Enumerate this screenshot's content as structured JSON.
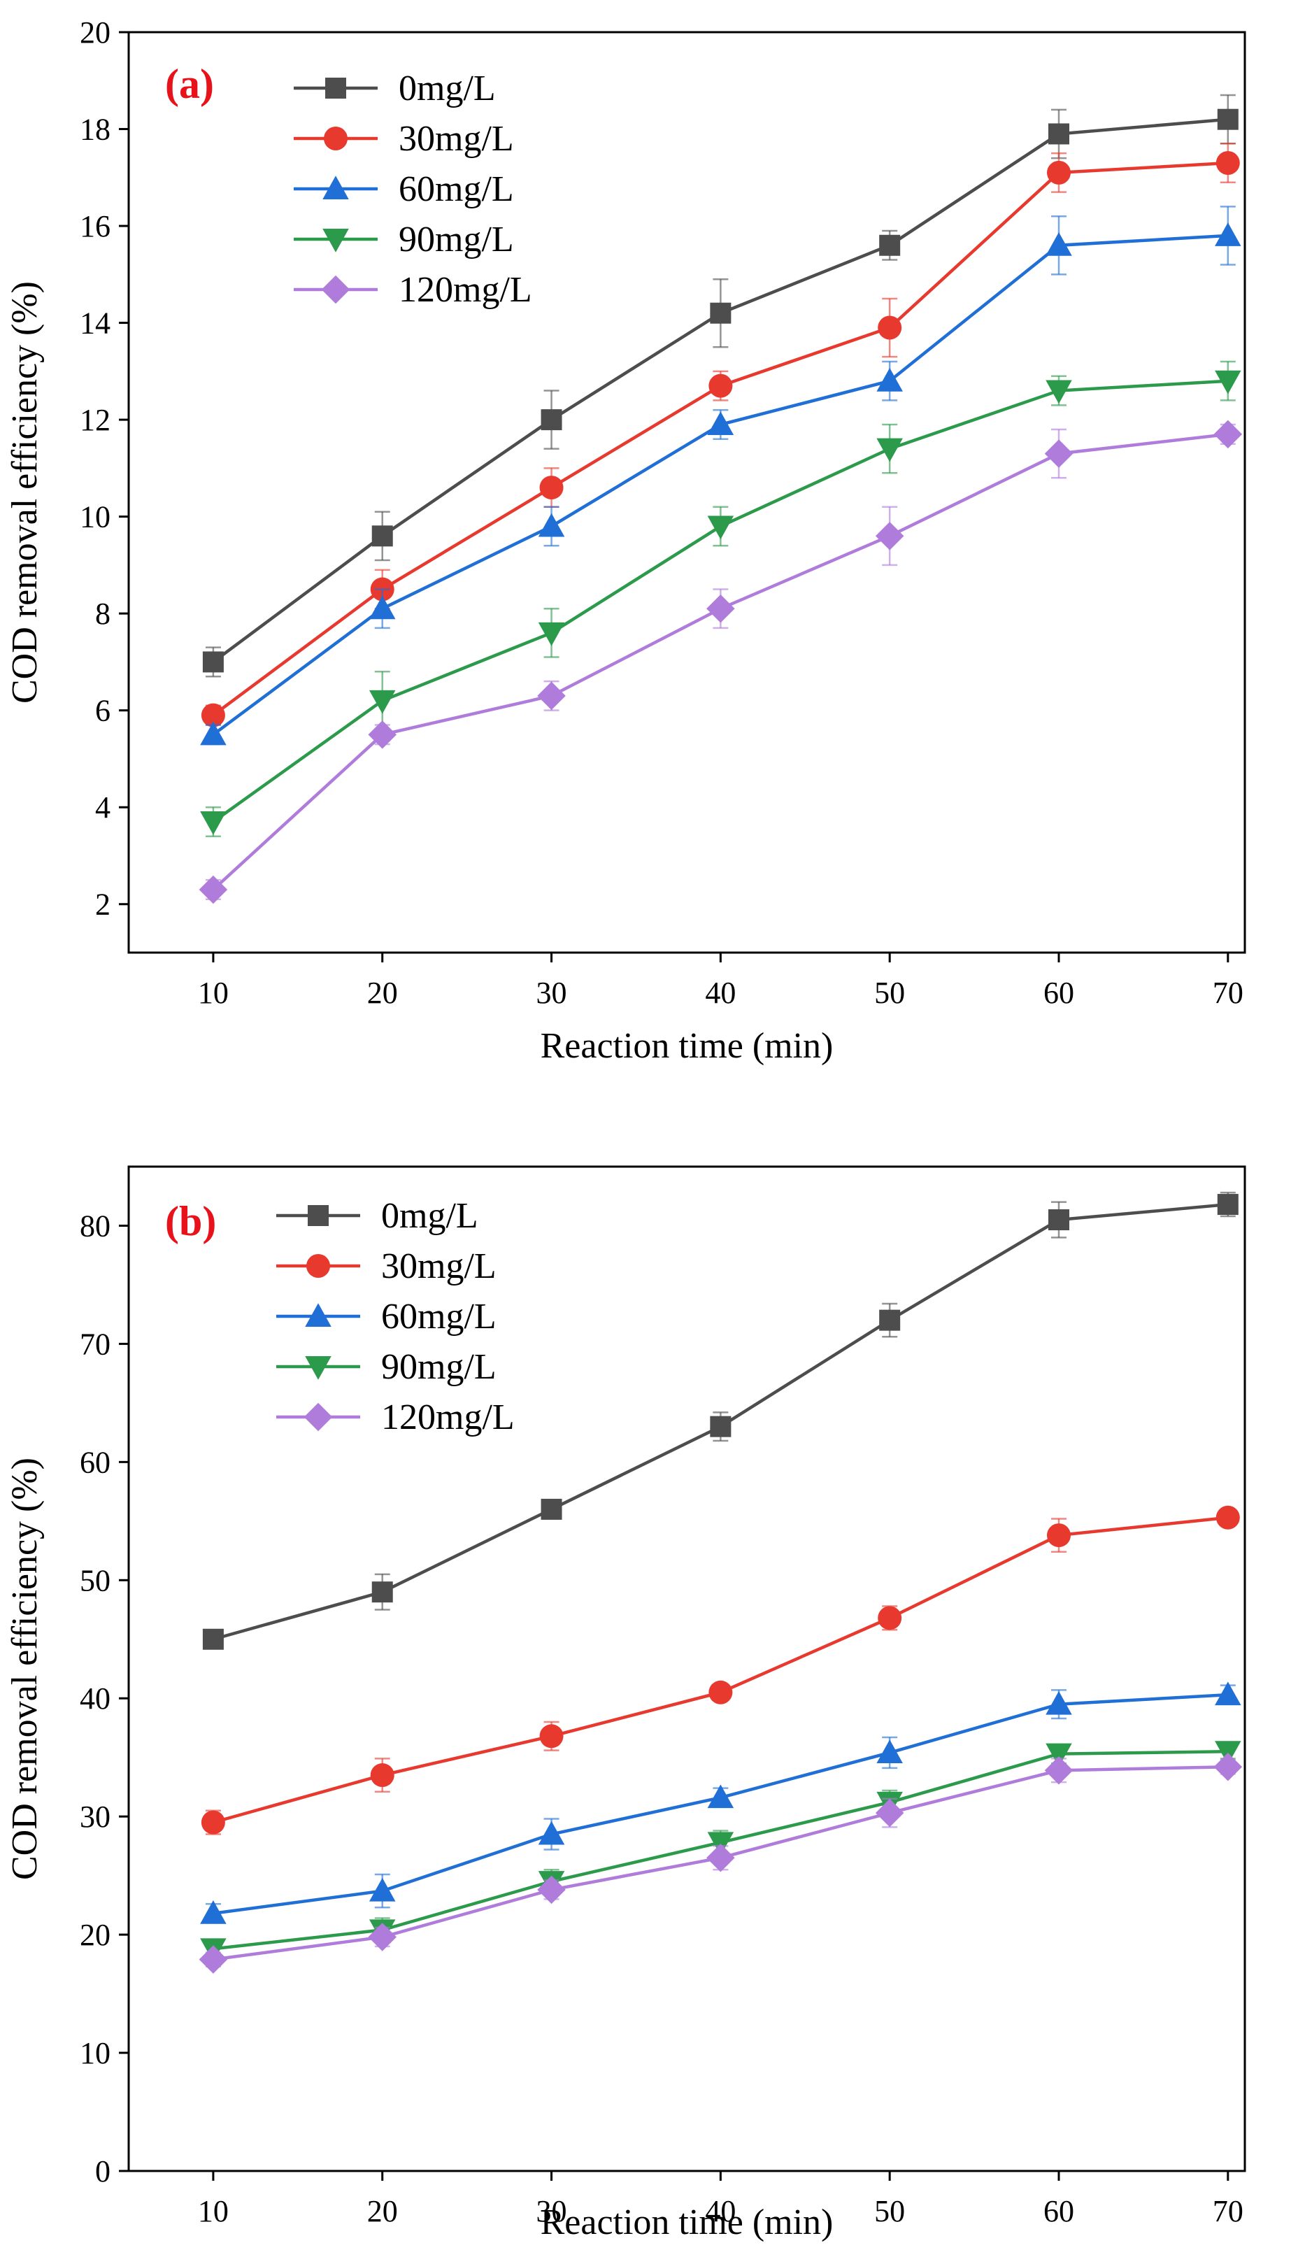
{
  "chart_data": [
    {
      "panel": "(a)",
      "type": "line",
      "xlabel": "Reaction time (min)",
      "ylabel": "COD removal efficiency (%)",
      "xlim": [
        5,
        71
      ],
      "ylim": [
        1,
        20
      ],
      "xticks": [
        10,
        20,
        30,
        40,
        50,
        60,
        70
      ],
      "yticks": [
        2,
        4,
        6,
        8,
        10,
        12,
        14,
        16,
        18,
        20
      ],
      "legend": "top-left",
      "x": [
        10,
        20,
        30,
        40,
        50,
        60,
        70
      ],
      "series": [
        {
          "name": "0mg/L",
          "color": "#4d4d4d",
          "marker": "square",
          "values": [
            7.0,
            9.6,
            12.0,
            14.2,
            15.6,
            17.9,
            18.2
          ],
          "errors": [
            0.3,
            0.5,
            0.6,
            0.7,
            0.3,
            0.5,
            0.5
          ]
        },
        {
          "name": "30mg/L",
          "color": "#e8392f",
          "marker": "circle",
          "values": [
            5.9,
            8.5,
            10.6,
            12.7,
            13.9,
            17.1,
            17.3
          ],
          "errors": [
            0.2,
            0.4,
            0.4,
            0.3,
            0.6,
            0.4,
            0.4
          ]
        },
        {
          "name": "60mg/L",
          "color": "#1f6fd6",
          "marker": "triangle-up",
          "values": [
            5.5,
            8.1,
            9.8,
            11.9,
            12.8,
            15.6,
            15.8
          ],
          "errors": [
            0.2,
            0.4,
            0.4,
            0.3,
            0.4,
            0.6,
            0.6
          ]
        },
        {
          "name": "90mg/L",
          "color": "#2c9a4b",
          "marker": "triangle-down",
          "values": [
            3.7,
            6.2,
            7.6,
            9.8,
            11.4,
            12.6,
            12.8
          ],
          "errors": [
            0.3,
            0.6,
            0.5,
            0.4,
            0.5,
            0.3,
            0.4
          ]
        },
        {
          "name": "120mg/L",
          "color": "#b07cdb",
          "marker": "diamond",
          "values": [
            2.3,
            5.5,
            6.3,
            8.1,
            9.6,
            11.3,
            11.7
          ],
          "errors": [
            0.2,
            0.2,
            0.3,
            0.4,
            0.6,
            0.5,
            0.2
          ]
        }
      ]
    },
    {
      "panel": "(b)",
      "type": "line",
      "xlabel": "Reaction time (min)",
      "ylabel": "COD removal efficiency (%)",
      "xlim": [
        5,
        71
      ],
      "ylim": [
        0,
        85
      ],
      "xticks": [
        10,
        20,
        30,
        40,
        50,
        60,
        70
      ],
      "yticks": [
        0,
        10,
        20,
        30,
        40,
        50,
        60,
        70,
        80
      ],
      "legend": "top-left",
      "x": [
        10,
        20,
        30,
        40,
        50,
        60,
        70
      ],
      "series": [
        {
          "name": "0mg/L",
          "color": "#4d4d4d",
          "marker": "square",
          "values": [
            45.0,
            49.0,
            56.0,
            63.0,
            72.0,
            80.5,
            81.8
          ],
          "errors": [
            0.8,
            1.5,
            0.7,
            1.2,
            1.4,
            1.5,
            1.0
          ]
        },
        {
          "name": "30mg/L",
          "color": "#e8392f",
          "marker": "circle",
          "values": [
            29.5,
            33.5,
            36.8,
            40.5,
            46.8,
            53.8,
            55.3
          ],
          "errors": [
            1.0,
            1.4,
            1.2,
            0.6,
            1.0,
            1.4,
            0.6
          ]
        },
        {
          "name": "60mg/L",
          "color": "#1f6fd6",
          "marker": "triangle-up",
          "values": [
            21.8,
            23.7,
            28.5,
            31.6,
            35.4,
            39.5,
            40.3
          ],
          "errors": [
            0.8,
            1.4,
            1.3,
            0.8,
            1.3,
            1.2,
            0.8
          ]
        },
        {
          "name": "90mg/L",
          "color": "#2c9a4b",
          "marker": "triangle-down",
          "values": [
            18.8,
            20.4,
            24.5,
            27.8,
            31.2,
            35.3,
            35.5
          ],
          "errors": [
            0.6,
            1.0,
            1.0,
            1.0,
            1.0,
            0.8,
            0.6
          ]
        },
        {
          "name": "120mg/L",
          "color": "#b07cdb",
          "marker": "diamond",
          "values": [
            17.9,
            19.8,
            23.8,
            26.5,
            30.3,
            33.9,
            34.2
          ],
          "errors": [
            0.6,
            0.8,
            0.8,
            1.0,
            1.2,
            1.0,
            0.6
          ]
        }
      ]
    }
  ]
}
